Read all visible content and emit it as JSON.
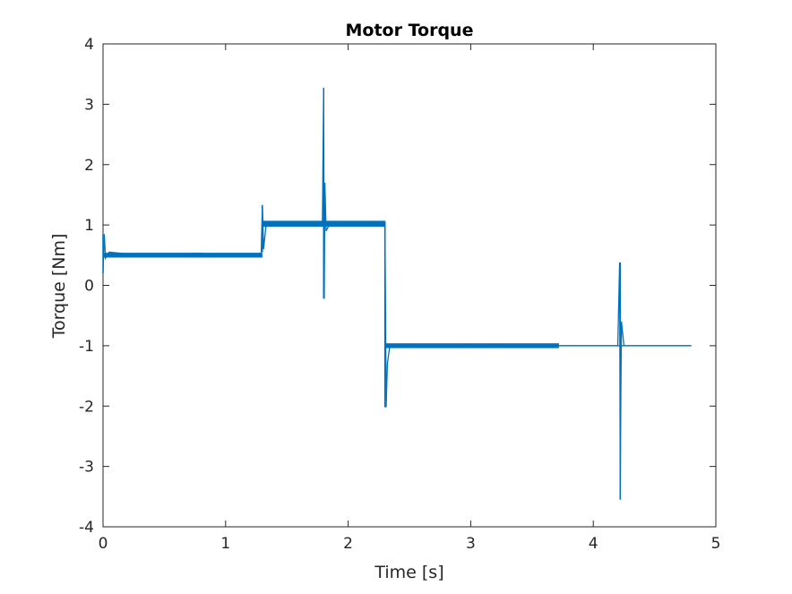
{
  "chart_data": {
    "type": "line",
    "title": "Motor Torque",
    "xlabel": "Time [s]",
    "ylabel": "Torque [Nm]",
    "xlim": [
      0,
      5
    ],
    "ylim": [
      -4,
      4
    ],
    "xticks": [
      0,
      1,
      2,
      3,
      4,
      5
    ],
    "xtick_labels": [
      "0",
      "1",
      "2",
      "3",
      "4",
      "5"
    ],
    "yticks": [
      -4,
      -3,
      -2,
      -1,
      0,
      1,
      2,
      3,
      4
    ],
    "ytick_labels": [
      "-4",
      "-3",
      "-2",
      "-1",
      "0",
      "1",
      "2",
      "3",
      "4"
    ],
    "grid": false,
    "line_color": "#0072BD",
    "series": [
      {
        "segments": [
          {
            "x_start": 0.0,
            "x_end": 1.3,
            "value": 0.5,
            "noise": 0.04,
            "note": "steady"
          },
          {
            "x_start": 1.3,
            "x_end": 2.3,
            "value": 1.02,
            "noise": 0.05
          },
          {
            "x_start": 2.3,
            "x_end": 3.72,
            "value": -1.0,
            "noise": 0.04
          },
          {
            "x_start": 3.72,
            "x_end": 4.8,
            "value": -1.0,
            "noise": 0.01
          }
        ],
        "transients": [
          {
            "x": 0.0,
            "min": 0.2,
            "max": 0.85
          },
          {
            "x": 1.3,
            "min": 0.55,
            "max": 1.33
          },
          {
            "x": 1.8,
            "min": -0.22,
            "max": 3.27
          },
          {
            "x": 2.3,
            "min": -2.02,
            "max": 1.05
          },
          {
            "x": 4.22,
            "min": -3.55,
            "max": 0.38
          }
        ],
        "points": [
          [
            0.0,
            0.2
          ],
          [
            0.01,
            0.85
          ],
          [
            0.02,
            0.45
          ],
          [
            0.05,
            0.55
          ],
          [
            0.2,
            0.52
          ],
          [
            0.5,
            0.52
          ],
          [
            0.8,
            0.53
          ],
          [
            1.0,
            0.48
          ],
          [
            1.29,
            0.5
          ],
          [
            1.3,
            1.33
          ],
          [
            1.31,
            0.6
          ],
          [
            1.33,
            1.0
          ],
          [
            1.5,
            1.02
          ],
          [
            1.7,
            1.02
          ],
          [
            1.79,
            1.02
          ],
          [
            1.8,
            3.27
          ],
          [
            1.805,
            -0.22
          ],
          [
            1.81,
            1.7
          ],
          [
            1.82,
            0.9
          ],
          [
            1.85,
            1.02
          ],
          [
            2.0,
            1.03
          ],
          [
            2.2,
            1.02
          ],
          [
            2.29,
            1.03
          ],
          [
            2.3,
            1.05
          ],
          [
            2.305,
            -0.4
          ],
          [
            2.31,
            -2.02
          ],
          [
            2.32,
            -1.3
          ],
          [
            2.34,
            -1.0
          ],
          [
            2.5,
            -0.98
          ],
          [
            2.8,
            -1.0
          ],
          [
            3.0,
            -1.03
          ],
          [
            3.3,
            -1.0
          ],
          [
            3.6,
            -1.0
          ],
          [
            3.72,
            -1.0
          ],
          [
            4.0,
            -1.0
          ],
          [
            4.2,
            -1.0
          ],
          [
            4.215,
            0.38
          ],
          [
            4.22,
            -3.55
          ],
          [
            4.225,
            -1.8
          ],
          [
            4.23,
            -0.6
          ],
          [
            4.25,
            -1.0
          ],
          [
            4.5,
            -1.0
          ],
          [
            4.8,
            -1.0
          ]
        ]
      }
    ]
  }
}
